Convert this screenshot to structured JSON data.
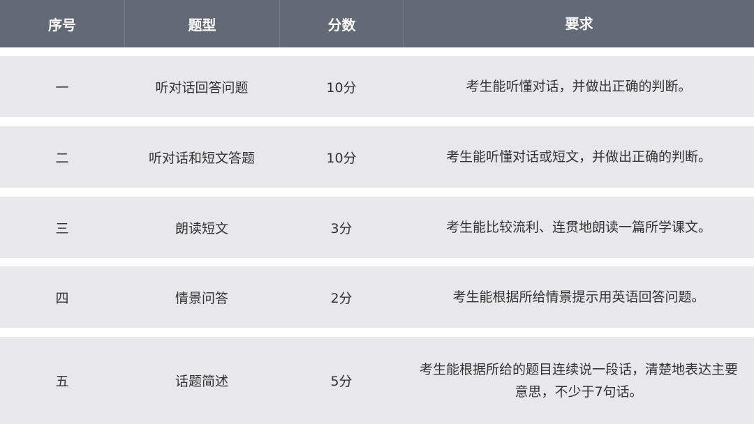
{
  "header": [
    "序号",
    "题型",
    "分数",
    "要求"
  ],
  "rows": [
    {
      "no": "一",
      "type": "听对话回答问题",
      "score": "10分",
      "req": "考生能听懂对话，并做出正确的判断。"
    },
    {
      "no": "二",
      "type": "听对话和短文答题",
      "score": "10分",
      "req": "考生能听懂对话或短文，并做出正确的判断。"
    },
    {
      "no": "三",
      "type": "朗读短文",
      "score": "3分",
      "req": "考生能比较流利、连贯地朗读一篇所学课文。"
    },
    {
      "no": "四",
      "type": "情景问答",
      "score": "2分",
      "req": "考生能根据所给情景提示用英语回答问题。"
    },
    {
      "no": "五",
      "type": "话题简述",
      "score": "5分",
      "req": "考生能根据所给的题目连续说一段话，清楚地表达主要意思，不少于7句话。"
    }
  ],
  "colors": {
    "header_bg": "#646a75",
    "row_bg": "#e8e8ea",
    "text": "#333333"
  }
}
